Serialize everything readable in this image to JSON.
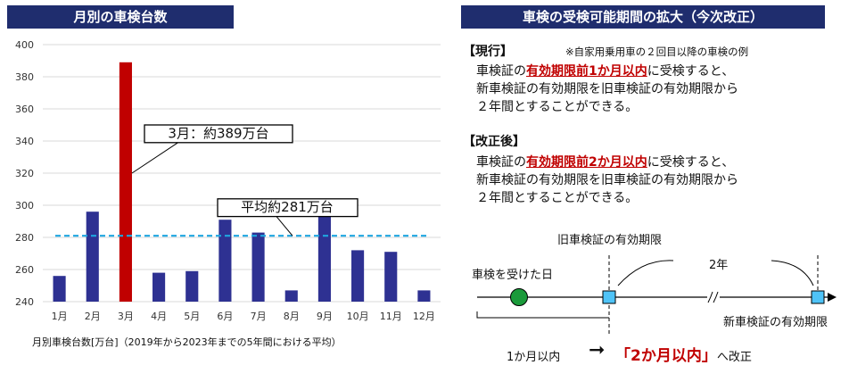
{
  "left_panel": {
    "header": "月別の車検台数",
    "caption": "月別車検台数[万台]（2019年から2023年までの5年間における平均）"
  },
  "chart_data": {
    "type": "bar",
    "title": "月別の車検台数",
    "categories": [
      "1月",
      "2月",
      "3月",
      "4月",
      "5月",
      "6月",
      "7月",
      "8月",
      "9月",
      "10月",
      "11月",
      "12月"
    ],
    "values": [
      256,
      296,
      389,
      258,
      259,
      291,
      283,
      247,
      294,
      272,
      271,
      247
    ],
    "ylim": [
      240,
      400
    ],
    "yticks": [
      240,
      260,
      280,
      300,
      320,
      340,
      360,
      380,
      400
    ],
    "grid": true,
    "bar_color": "#2e3192",
    "highlight_index": 2,
    "highlight_color": "#c00000",
    "average_line": {
      "value": 281,
      "color": "#1ea6e0"
    },
    "annotations": [
      "3月：約389万台",
      "平均約281万台"
    ]
  },
  "right_panel": {
    "header": "車検の受検可能期間の拡大（今次改正）",
    "current": {
      "label": "【現行】",
      "note": "※自家用乗用車の２回目以降の車検の例",
      "line1_pre": "車検証の",
      "line1_hl": "有効期限前1か月以内",
      "line1_post": "に受検すると、",
      "line2": "新車検証の有効期限を旧車検証の有効期限から",
      "line3": "２年間とすることができる。"
    },
    "revised": {
      "label": "【改正後】",
      "line1_pre": "車検証の",
      "line1_hl": "有効期限前2か月以内",
      "line1_post": "に受検すると、",
      "line2": "新車検証の有効期限を旧車検証の有効期限から",
      "line3": "２年間とすることができる。"
    },
    "timeline": {
      "old_expiry_label": "旧車検証の有効期限",
      "inspection_day_label": "車検を受けた日",
      "two_years_label": "2年",
      "new_expiry_label": "新車検証の有効期限",
      "one_month_label": "1か月以内",
      "arrow_glyph": "➞",
      "two_months_label": "「2か月以内」",
      "revision_suffix": "へ改正",
      "colors": {
        "dot": "#1a9a3a",
        "square": "#4fc3f7",
        "emphasis": "#c00000"
      }
    }
  }
}
